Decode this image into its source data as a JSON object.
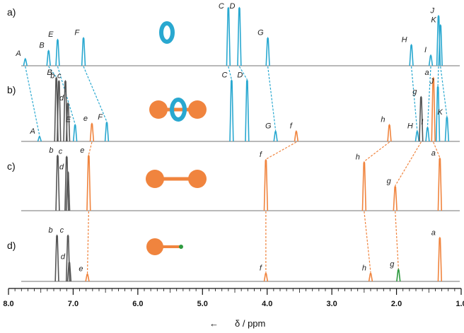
{
  "chart_data": {
    "type": "line",
    "xlabel": "δ / ppm",
    "x_axis": {
      "range": [
        8.0,
        1.0
      ],
      "reversed": true,
      "ticks": [
        "8.0",
        "7.0",
        "6.0",
        "5.0",
        "4.0",
        "3.0",
        "2.0",
        "1.0"
      ],
      "minor_step": 0.1
    },
    "colors": {
      "macrocycle": "#29a8d0",
      "axle": "#f0843e",
      "stopper_old": "#555555",
      "green": "#2e9a3f",
      "dashed_blue": "#29a8d0",
      "dashed_orange": "#f0843e"
    },
    "panels": [
      {
        "id": "a",
        "label": "a)",
        "peaks": [
          {
            "ppm": 7.74,
            "h": 0.12,
            "label": "A",
            "color": "macrocycle"
          },
          {
            "ppm": 7.38,
            "h": 0.26,
            "label": "B",
            "color": "macrocycle"
          },
          {
            "ppm": 7.24,
            "h": 0.45,
            "label": "E",
            "color": "macrocycle"
          },
          {
            "ppm": 6.84,
            "h": 0.48,
            "label": "F",
            "color": "macrocycle"
          },
          {
            "ppm": 4.6,
            "h": 1.0,
            "label": "C",
            "color": "macrocycle"
          },
          {
            "ppm": 4.43,
            "h": 1.0,
            "label": "D",
            "color": "macrocycle"
          },
          {
            "ppm": 3.99,
            "h": 0.48,
            "label": "G",
            "color": "macrocycle"
          },
          {
            "ppm": 1.77,
            "h": 0.36,
            "label": "H",
            "color": "macrocycle"
          },
          {
            "ppm": 1.47,
            "h": 0.18,
            "label": "I",
            "color": "macrocycle"
          },
          {
            "ppm": 1.35,
            "h": 0.86,
            "label": "J",
            "color": "macrocycle"
          },
          {
            "ppm": 1.32,
            "h": 0.7,
            "label": "K",
            "color": "macrocycle"
          }
        ]
      },
      {
        "id": "b",
        "label": "b)",
        "peaks": [
          {
            "ppm": 7.52,
            "h": 0.08,
            "label": "A",
            "color": "macrocycle"
          },
          {
            "ppm": 7.26,
            "h": 1.0,
            "label": "B",
            "color": "stopper_old"
          },
          {
            "ppm": 7.22,
            "h": 0.95,
            "label": "b",
            "color": "stopper_old"
          },
          {
            "ppm": 7.12,
            "h": 0.95,
            "label": "c",
            "color": "stopper_old"
          },
          {
            "ppm": 7.08,
            "h": 0.6,
            "label": "d",
            "color": "stopper_old"
          },
          {
            "ppm": 6.97,
            "h": 0.26,
            "label": "E",
            "color": "macrocycle"
          },
          {
            "ppm": 6.71,
            "h": 0.28,
            "label": "e",
            "color": "axle"
          },
          {
            "ppm": 6.48,
            "h": 0.3,
            "label": "F",
            "color": "macrocycle"
          },
          {
            "ppm": 4.55,
            "h": 0.96,
            "label": "C",
            "color": "macrocycle"
          },
          {
            "ppm": 4.31,
            "h": 0.96,
            "label": "D",
            "color": "macrocycle"
          },
          {
            "ppm": 3.87,
            "h": 0.16,
            "label": "G",
            "color": "macrocycle"
          },
          {
            "ppm": 3.55,
            "h": 0.16,
            "label": "f",
            "color": "axle"
          },
          {
            "ppm": 2.11,
            "h": 0.26,
            "label": "h",
            "color": "axle"
          },
          {
            "ppm": 1.68,
            "h": 0.16,
            "label": "H",
            "color": "macrocycle"
          },
          {
            "ppm": 1.62,
            "h": 0.7,
            "label": "g",
            "color": "stopper_old"
          },
          {
            "ppm": 1.52,
            "h": 0.22,
            "label": "I",
            "color": "macrocycle"
          },
          {
            "ppm": 1.43,
            "h": 1.0,
            "label": "a",
            "color": "axle"
          },
          {
            "ppm": 1.36,
            "h": 0.86,
            "label": "J",
            "color": "macrocycle"
          },
          {
            "ppm": 1.22,
            "h": 0.38,
            "label": "K",
            "color": "macrocycle"
          }
        ]
      },
      {
        "id": "c",
        "label": "c)",
        "peaks": [
          {
            "ppm": 7.24,
            "h": 1.0,
            "label": "b",
            "color": "stopper_old"
          },
          {
            "ppm": 7.1,
            "h": 0.98,
            "label": "c",
            "color": "stopper_old"
          },
          {
            "ppm": 7.08,
            "h": 0.7,
            "label": "d",
            "color": "stopper_old"
          },
          {
            "ppm": 6.76,
            "h": 1.0,
            "label": "e",
            "color": "axle"
          },
          {
            "ppm": 4.02,
            "h": 0.92,
            "label": "f",
            "color": "axle"
          },
          {
            "ppm": 2.5,
            "h": 0.88,
            "label": "h",
            "color": "axle"
          },
          {
            "ppm": 2.02,
            "h": 0.44,
            "label": "g",
            "color": "axle"
          },
          {
            "ppm": 1.33,
            "h": 0.95,
            "label": "a",
            "color": "axle"
          }
        ]
      },
      {
        "id": "d",
        "label": "d)",
        "peaks": [
          {
            "ppm": 7.25,
            "h": 1.0,
            "label": "b",
            "color": "stopper_old"
          },
          {
            "ppm": 7.08,
            "h": 1.0,
            "label": "c",
            "color": "stopper_old"
          },
          {
            "ppm": 7.06,
            "h": 0.42,
            "label": "d",
            "color": "stopper_old"
          },
          {
            "ppm": 6.78,
            "h": 0.16,
            "label": "e",
            "color": "axle"
          },
          {
            "ppm": 4.02,
            "h": 0.18,
            "label": "f",
            "color": "axle"
          },
          {
            "ppm": 2.4,
            "h": 0.18,
            "label": "h",
            "color": "axle"
          },
          {
            "ppm": 1.97,
            "h": 0.26,
            "label": "g",
            "color": "green"
          },
          {
            "ppm": 1.33,
            "h": 0.95,
            "label": "a",
            "color": "axle"
          }
        ]
      }
    ],
    "correlations": [
      {
        "from_panel": "a",
        "to_panel": "b",
        "pairs": [
          [
            "A",
            "A"
          ],
          [
            "B",
            "B"
          ],
          [
            "E",
            "E"
          ],
          [
            "F",
            "F"
          ],
          [
            "C",
            "C"
          ],
          [
            "D",
            "D"
          ],
          [
            "G",
            "G"
          ],
          [
            "H",
            "H"
          ],
          [
            "I",
            "I"
          ],
          [
            "J",
            "J"
          ],
          [
            "K",
            "K"
          ]
        ],
        "color": "dashed_blue"
      },
      {
        "from_panel": "b",
        "to_panel": "c",
        "pairs": [
          [
            "e",
            "e"
          ],
          [
            "f",
            "f"
          ],
          [
            "h",
            "h"
          ],
          [
            "g",
            "g"
          ],
          [
            "a",
            "a"
          ]
        ],
        "color": "dashed_orange"
      },
      {
        "from_panel": "c",
        "to_panel": "d",
        "pairs": [
          [
            "e",
            "e"
          ],
          [
            "f",
            "f"
          ],
          [
            "h",
            "h"
          ],
          [
            "g",
            "g"
          ]
        ],
        "color": "dashed_orange"
      }
    ],
    "grid": false,
    "legend": "none"
  }
}
